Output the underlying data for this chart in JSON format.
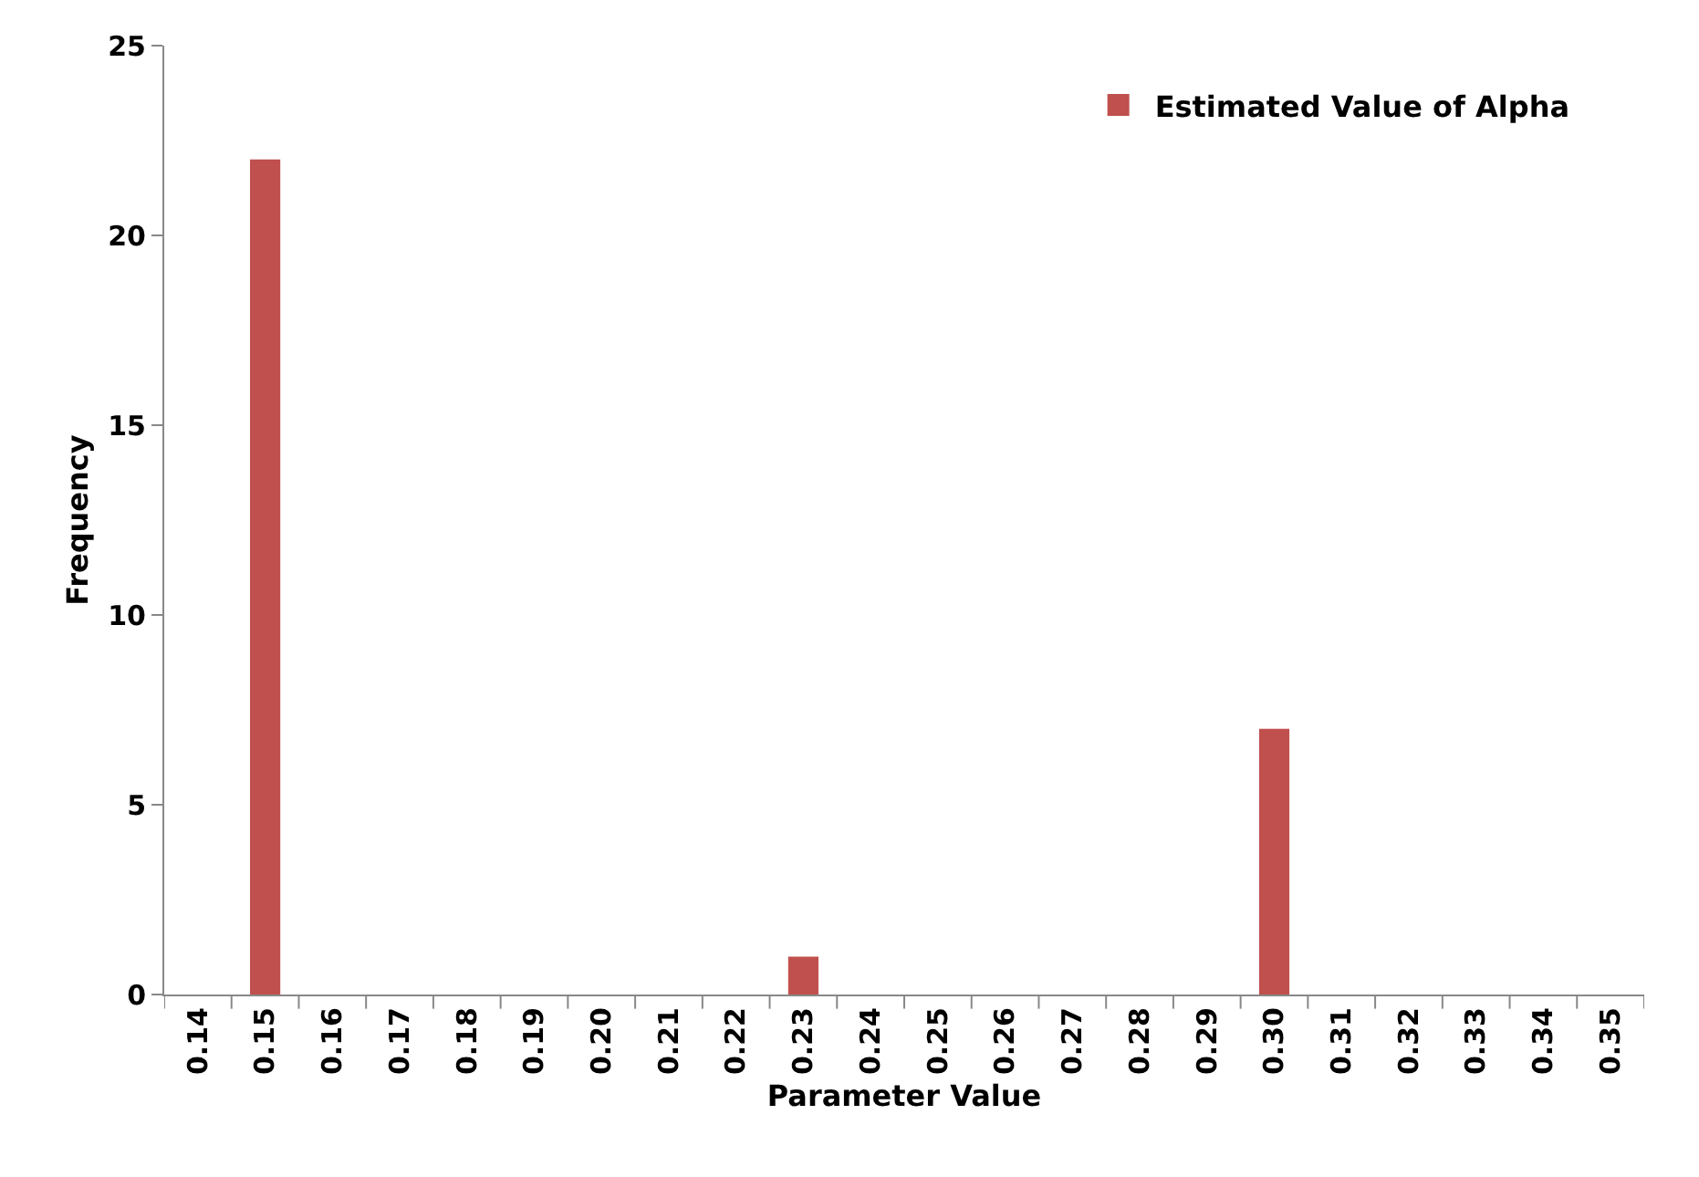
{
  "chart_data": {
    "type": "bar",
    "xlabel": "Parameter Value",
    "ylabel": "Frequency",
    "categories": [
      "0.14",
      "0.15",
      "0.16",
      "0.17",
      "0.18",
      "0.19",
      "0.20",
      "0.21",
      "0.22",
      "0.23",
      "0.24",
      "0.25",
      "0.26",
      "0.27",
      "0.28",
      "0.29",
      "0.30",
      "0.31",
      "0.32",
      "0.33",
      "0.34",
      "0.35"
    ],
    "series": [
      {
        "name": "Estimated Value of Alpha",
        "color": "#c0504d",
        "values": [
          0,
          22,
          0,
          0,
          0,
          0,
          0,
          0,
          0,
          1,
          0,
          0,
          0,
          0,
          0,
          0,
          7,
          0,
          0,
          0,
          0,
          0
        ]
      }
    ],
    "ylim": [
      0,
      25
    ],
    "yticks": [
      0,
      5,
      10,
      15,
      20,
      25
    ],
    "grid": false,
    "legend": "top right"
  }
}
